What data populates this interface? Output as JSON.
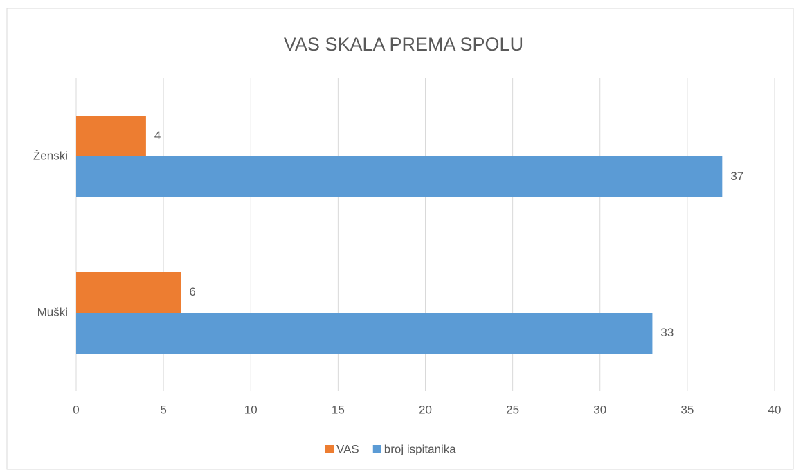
{
  "chart_data": {
    "type": "bar",
    "orientation": "horizontal",
    "title": "VAS SKALA PREMA SPOLU",
    "categories": [
      "Muški",
      "Ženski"
    ],
    "series": [
      {
        "name": "VAS",
        "color": "#ed7d31",
        "values": [
          6,
          4
        ]
      },
      {
        "name": "broj ispitanika",
        "color": "#5b9bd5",
        "values": [
          33,
          37
        ]
      }
    ],
    "xlim": [
      0,
      40
    ],
    "xticks": [
      0,
      5,
      10,
      15,
      20,
      25,
      30,
      35,
      40
    ],
    "grid": true,
    "legend": "bottom"
  }
}
